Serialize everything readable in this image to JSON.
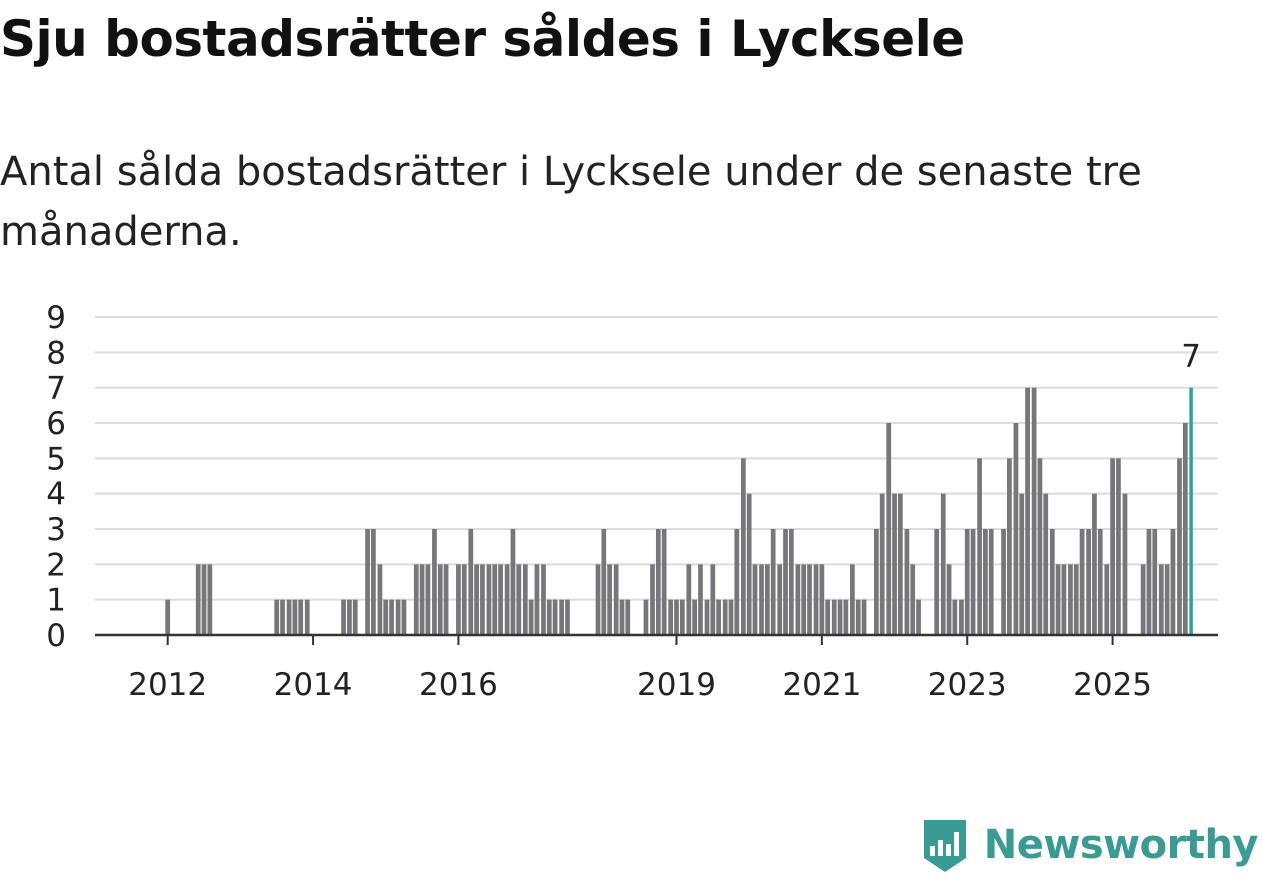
{
  "header": {
    "title": "Sju bostadsrätter såldes i Lycksele",
    "subtitle": "Antal sålda bostadsrätter i Lycksele under de senaste tre månaderna."
  },
  "logo": {
    "text": "Newsworthy",
    "icon": "newsworthy-chart-icon",
    "color": "#3a9a94"
  },
  "chart_data": {
    "type": "bar",
    "title": "Sju bostadsrätter såldes i Lycksele",
    "subtitle": "Antal sålda bostadsrätter i Lycksele under de senaste tre månaderna.",
    "xlabel": "",
    "ylabel": "",
    "x_start": 2011,
    "x_end": 2026.45,
    "bar_step": 0.0833,
    "ylim": [
      0,
      9
    ],
    "yticks": [
      0,
      1,
      2,
      3,
      4,
      5,
      6,
      7,
      8,
      9
    ],
    "xticks": [
      {
        "label": "2012",
        "value": 2012
      },
      {
        "label": "2014",
        "value": 2014
      },
      {
        "label": "2016",
        "value": 2016
      },
      {
        "label": "2019",
        "value": 2019
      },
      {
        "label": "2021",
        "value": 2021
      },
      {
        "label": "2023",
        "value": 2023
      },
      {
        "label": "2025",
        "value": 2025
      }
    ],
    "grid": true,
    "bar_color": "#76767b",
    "highlight_color": "#26a69a",
    "highlight_label": "7",
    "series": [
      {
        "name": "Antal sålda bostadsrätter",
        "points": [
          {
            "x": 2012.0,
            "y": 1
          },
          {
            "x": 2012.42,
            "y": 2
          },
          {
            "x": 2012.5,
            "y": 2
          },
          {
            "x": 2012.58,
            "y": 2
          },
          {
            "x": 2013.5,
            "y": 1
          },
          {
            "x": 2013.58,
            "y": 1
          },
          {
            "x": 2013.67,
            "y": 1
          },
          {
            "x": 2013.75,
            "y": 1
          },
          {
            "x": 2013.83,
            "y": 1
          },
          {
            "x": 2013.92,
            "y": 1
          },
          {
            "x": 2014.42,
            "y": 1
          },
          {
            "x": 2014.5,
            "y": 1
          },
          {
            "x": 2014.58,
            "y": 1
          },
          {
            "x": 2014.75,
            "y": 3
          },
          {
            "x": 2014.83,
            "y": 3
          },
          {
            "x": 2014.92,
            "y": 2
          },
          {
            "x": 2015.0,
            "y": 1
          },
          {
            "x": 2015.08,
            "y": 1
          },
          {
            "x": 2015.17,
            "y": 1
          },
          {
            "x": 2015.25,
            "y": 1
          },
          {
            "x": 2015.42,
            "y": 2
          },
          {
            "x": 2015.5,
            "y": 2
          },
          {
            "x": 2015.58,
            "y": 2
          },
          {
            "x": 2015.67,
            "y": 3
          },
          {
            "x": 2015.75,
            "y": 2
          },
          {
            "x": 2015.83,
            "y": 2
          },
          {
            "x": 2016.0,
            "y": 2
          },
          {
            "x": 2016.08,
            "y": 2
          },
          {
            "x": 2016.17,
            "y": 3
          },
          {
            "x": 2016.25,
            "y": 2
          },
          {
            "x": 2016.33,
            "y": 2
          },
          {
            "x": 2016.42,
            "y": 2
          },
          {
            "x": 2016.5,
            "y": 2
          },
          {
            "x": 2016.58,
            "y": 2
          },
          {
            "x": 2016.67,
            "y": 2
          },
          {
            "x": 2016.75,
            "y": 3
          },
          {
            "x": 2016.83,
            "y": 2
          },
          {
            "x": 2016.92,
            "y": 2
          },
          {
            "x": 2017.0,
            "y": 1
          },
          {
            "x": 2017.08,
            "y": 2
          },
          {
            "x": 2017.17,
            "y": 2
          },
          {
            "x": 2017.25,
            "y": 1
          },
          {
            "x": 2017.33,
            "y": 1
          },
          {
            "x": 2017.42,
            "y": 1
          },
          {
            "x": 2017.5,
            "y": 1
          },
          {
            "x": 2017.92,
            "y": 2
          },
          {
            "x": 2018.0,
            "y": 3
          },
          {
            "x": 2018.08,
            "y": 2
          },
          {
            "x": 2018.17,
            "y": 2
          },
          {
            "x": 2018.25,
            "y": 1
          },
          {
            "x": 2018.33,
            "y": 1
          },
          {
            "x": 2018.58,
            "y": 1
          },
          {
            "x": 2018.67,
            "y": 2
          },
          {
            "x": 2018.75,
            "y": 3
          },
          {
            "x": 2018.83,
            "y": 3
          },
          {
            "x": 2018.92,
            "y": 1
          },
          {
            "x": 2019.0,
            "y": 1
          },
          {
            "x": 2019.08,
            "y": 1
          },
          {
            "x": 2019.17,
            "y": 2
          },
          {
            "x": 2019.25,
            "y": 1
          },
          {
            "x": 2019.33,
            "y": 2
          },
          {
            "x": 2019.42,
            "y": 1
          },
          {
            "x": 2019.5,
            "y": 2
          },
          {
            "x": 2019.58,
            "y": 1
          },
          {
            "x": 2019.67,
            "y": 1
          },
          {
            "x": 2019.75,
            "y": 1
          },
          {
            "x": 2019.83,
            "y": 3
          },
          {
            "x": 2019.92,
            "y": 5
          },
          {
            "x": 2020.0,
            "y": 4
          },
          {
            "x": 2020.08,
            "y": 2
          },
          {
            "x": 2020.17,
            "y": 2
          },
          {
            "x": 2020.25,
            "y": 2
          },
          {
            "x": 2020.33,
            "y": 3
          },
          {
            "x": 2020.42,
            "y": 2
          },
          {
            "x": 2020.5,
            "y": 3
          },
          {
            "x": 2020.58,
            "y": 3
          },
          {
            "x": 2020.67,
            "y": 2
          },
          {
            "x": 2020.75,
            "y": 2
          },
          {
            "x": 2020.83,
            "y": 2
          },
          {
            "x": 2020.92,
            "y": 2
          },
          {
            "x": 2021.0,
            "y": 2
          },
          {
            "x": 2021.08,
            "y": 1
          },
          {
            "x": 2021.17,
            "y": 1
          },
          {
            "x": 2021.25,
            "y": 1
          },
          {
            "x": 2021.33,
            "y": 1
          },
          {
            "x": 2021.42,
            "y": 2
          },
          {
            "x": 2021.5,
            "y": 1
          },
          {
            "x": 2021.58,
            "y": 1
          },
          {
            "x": 2021.75,
            "y": 3
          },
          {
            "x": 2021.83,
            "y": 4
          },
          {
            "x": 2021.92,
            "y": 6
          },
          {
            "x": 2022.0,
            "y": 4
          },
          {
            "x": 2022.08,
            "y": 4
          },
          {
            "x": 2022.17,
            "y": 3
          },
          {
            "x": 2022.25,
            "y": 2
          },
          {
            "x": 2022.33,
            "y": 1
          },
          {
            "x": 2022.58,
            "y": 3
          },
          {
            "x": 2022.67,
            "y": 4
          },
          {
            "x": 2022.75,
            "y": 2
          },
          {
            "x": 2022.83,
            "y": 1
          },
          {
            "x": 2022.92,
            "y": 1
          },
          {
            "x": 2023.0,
            "y": 3
          },
          {
            "x": 2023.08,
            "y": 3
          },
          {
            "x": 2023.17,
            "y": 5
          },
          {
            "x": 2023.25,
            "y": 3
          },
          {
            "x": 2023.33,
            "y": 3
          },
          {
            "x": 2023.5,
            "y": 3
          },
          {
            "x": 2023.58,
            "y": 5
          },
          {
            "x": 2023.67,
            "y": 6
          },
          {
            "x": 2023.75,
            "y": 4
          },
          {
            "x": 2023.83,
            "y": 7
          },
          {
            "x": 2023.92,
            "y": 7
          },
          {
            "x": 2024.0,
            "y": 5
          },
          {
            "x": 2024.08,
            "y": 4
          },
          {
            "x": 2024.17,
            "y": 3
          },
          {
            "x": 2024.25,
            "y": 2
          },
          {
            "x": 2024.33,
            "y": 2
          },
          {
            "x": 2024.42,
            "y": 2
          },
          {
            "x": 2024.5,
            "y": 2
          },
          {
            "x": 2024.58,
            "y": 3
          },
          {
            "x": 2024.67,
            "y": 3
          },
          {
            "x": 2024.75,
            "y": 4
          },
          {
            "x": 2024.83,
            "y": 3
          },
          {
            "x": 2024.92,
            "y": 2
          },
          {
            "x": 2025.0,
            "y": 5
          },
          {
            "x": 2025.08,
            "y": 5
          },
          {
            "x": 2025.17,
            "y": 4
          },
          {
            "x": 2025.42,
            "y": 2
          },
          {
            "x": 2025.5,
            "y": 3
          },
          {
            "x": 2025.58,
            "y": 3
          },
          {
            "x": 2025.67,
            "y": 2
          },
          {
            "x": 2025.75,
            "y": 2
          },
          {
            "x": 2025.83,
            "y": 3
          },
          {
            "x": 2025.92,
            "y": 5
          },
          {
            "x": 2026.0,
            "y": 6
          },
          {
            "x": 2026.08,
            "y": 7
          }
        ]
      }
    ]
  }
}
